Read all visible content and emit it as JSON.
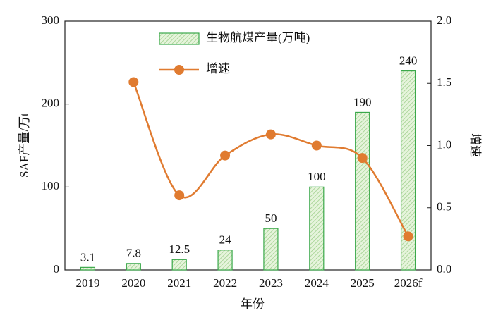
{
  "chart_data": {
    "type": "combo",
    "categories": [
      "2019",
      "2020",
      "2021",
      "2022",
      "2023",
      "2024",
      "2025",
      "2026f"
    ],
    "series": [
      {
        "name": "生物航煤产量(万吨)",
        "type": "bar",
        "color": "#3aa84a",
        "values": [
          3.1,
          7.8,
          12.5,
          24,
          50,
          100,
          190,
          240
        ]
      },
      {
        "name": "增速",
        "type": "line",
        "axis": "y2",
        "color": "#e07b30",
        "values": [
          null,
          1.51,
          0.6,
          0.92,
          1.09,
          1.0,
          0.9,
          0.27
        ]
      }
    ],
    "ylim": [
      0,
      300
    ],
    "yticks": [
      0,
      100,
      200,
      300
    ],
    "y2lim": [
      0,
      2
    ],
    "y2ticks": [
      {
        "value": 0,
        "label": "0.0"
      },
      0.5,
      {
        "value": 1,
        "label": "1.0"
      },
      1.5,
      {
        "value": 2,
        "label": "2.0"
      }
    ],
    "xlabel": "年份",
    "ylabel": "SAF产量/万t",
    "y2label": "增速"
  }
}
